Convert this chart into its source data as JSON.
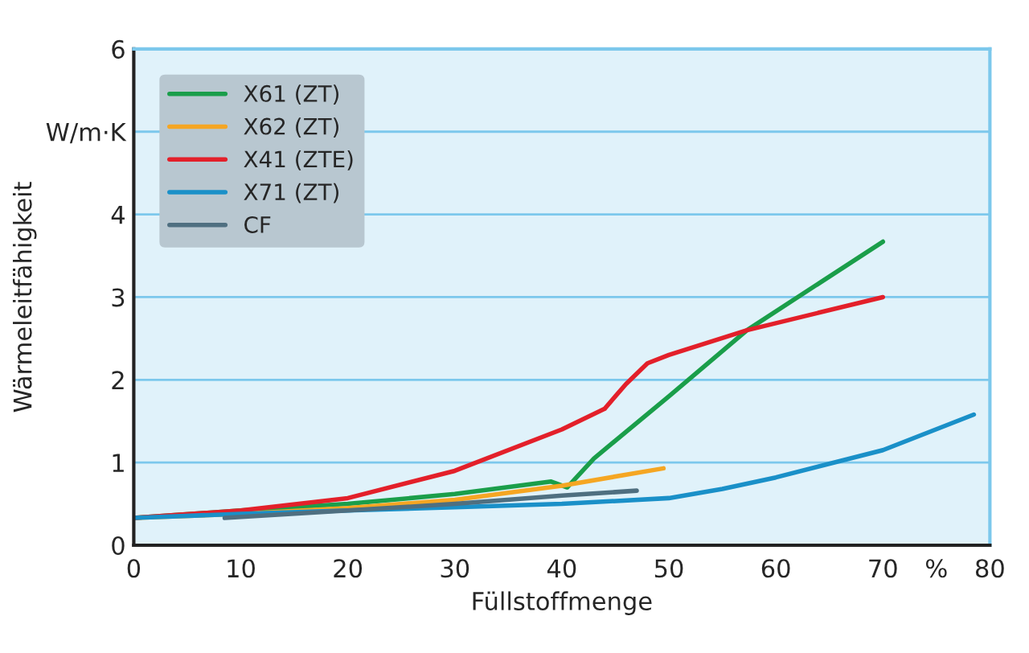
{
  "chart_data": {
    "type": "line",
    "xlabel": "Füllstoffmenge",
    "ylabel": "Wärmeleitfähigkeit",
    "xlim": [
      0,
      80
    ],
    "ylim": [
      0,
      6
    ],
    "xticks": [
      0,
      10,
      20,
      30,
      40,
      50,
      60,
      70,
      {
        "value": 75,
        "label": "%"
      },
      80
    ],
    "yticks": [
      0,
      1,
      2,
      3,
      4,
      {
        "value": 5,
        "label": "W/m·K"
      },
      6
    ],
    "grid": "y",
    "legend": "top left",
    "marker": "none",
    "line_style": "solid",
    "series": [
      {
        "name": "X61 (ZT)",
        "color": "#1a9e4a",
        "x": [
          0,
          10,
          20,
          30,
          39,
          40.5,
          43,
          50,
          57.3,
          70
        ],
        "values": [
          0.33,
          0.42,
          0.5,
          0.62,
          0.77,
          0.7,
          1.05,
          1.8,
          2.6,
          3.67
        ]
      },
      {
        "name": "X62 (ZT)",
        "color": "#f5a623",
        "x": [
          0,
          10,
          20,
          30,
          40,
          49.5
        ],
        "values": [
          0.33,
          0.38,
          0.45,
          0.55,
          0.72,
          0.93
        ]
      },
      {
        "name": "X41 (ZTE)",
        "color": "#e3202a",
        "x": [
          0,
          10,
          20,
          30,
          40,
          44,
          46,
          48,
          50,
          57.3,
          70
        ],
        "values": [
          0.33,
          0.42,
          0.57,
          0.9,
          1.4,
          1.65,
          1.95,
          2.2,
          2.3,
          2.6,
          3.0
        ]
      },
      {
        "name": "X71 (ZT)",
        "color": "#1a90c8",
        "x": [
          0,
          10,
          20,
          30,
          40,
          50,
          55,
          60,
          70,
          78.5
        ],
        "values": [
          0.33,
          0.38,
          0.42,
          0.46,
          0.5,
          0.57,
          0.68,
          0.82,
          1.15,
          1.58
        ]
      },
      {
        "name": "CF",
        "color": "#4f6f80",
        "x": [
          8.5,
          20,
          30,
          40,
          47
        ],
        "values": [
          0.33,
          0.42,
          0.5,
          0.6,
          0.66
        ]
      }
    ]
  }
}
